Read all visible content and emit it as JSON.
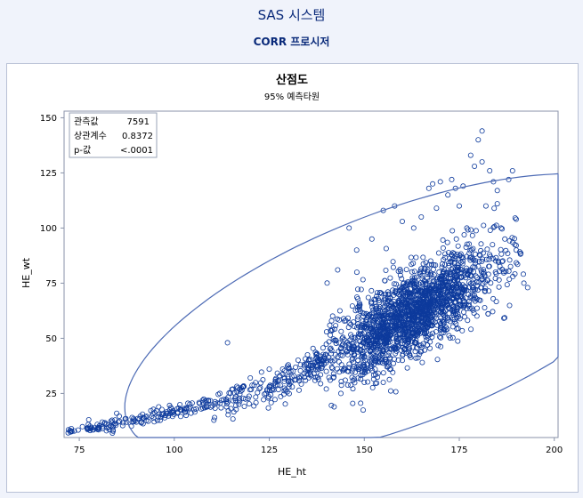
{
  "header": {
    "system_title": "SAS 시스템",
    "procedure_title": "CORR 프로시저"
  },
  "chart_data": {
    "type": "scatter",
    "title": "산점도",
    "subtitle": "95% 예측타원",
    "xlabel": "HE_ht",
    "ylabel": "HE_wt",
    "xlim": [
      71,
      201
    ],
    "ylim": [
      5,
      153
    ],
    "x_ticks": [
      75,
      100,
      125,
      150,
      175,
      200
    ],
    "y_ticks": [
      25,
      50,
      75,
      100,
      125,
      150
    ],
    "inset_stats": [
      {
        "label": "관측값",
        "value": "7591"
      },
      {
        "label": "상관계수",
        "value": "0.8372"
      },
      {
        "label": "p-값",
        "value": "<.0001"
      }
    ],
    "marker_color": "#0d3a9c",
    "ellipse_color": "#4d6bb5",
    "ellipse": {
      "center": [
        159.3,
        59.2
      ],
      "semi_axis_major": 49.5,
      "semi_axis_minor": 7.6,
      "angle_deg": 21.0
    },
    "outliers": [
      [
        114,
        48
      ],
      [
        143,
        81
      ],
      [
        146,
        100
      ],
      [
        148,
        90
      ],
      [
        152,
        95
      ],
      [
        155,
        108
      ],
      [
        158,
        110
      ],
      [
        160,
        103
      ],
      [
        163,
        100
      ],
      [
        165,
        105
      ],
      [
        167,
        118
      ],
      [
        168,
        120
      ],
      [
        170,
        121
      ],
      [
        172,
        115
      ],
      [
        173,
        122
      ],
      [
        174,
        118
      ],
      [
        175,
        110
      ],
      [
        176,
        119
      ],
      [
        177,
        100
      ],
      [
        178,
        133
      ],
      [
        179,
        128
      ],
      [
        180,
        140
      ],
      [
        181,
        144
      ],
      [
        181,
        130
      ],
      [
        182,
        110
      ],
      [
        183,
        126
      ],
      [
        184,
        121
      ],
      [
        185,
        117
      ],
      [
        186,
        100
      ],
      [
        187,
        95
      ],
      [
        188,
        122
      ],
      [
        189,
        126
      ],
      [
        190,
        90
      ],
      [
        192,
        75
      ],
      [
        193,
        73
      ],
      [
        190,
        104
      ],
      [
        185,
        111
      ],
      [
        169,
        109
      ],
      [
        165,
        44
      ],
      [
        160,
        40
      ],
      [
        155,
        30
      ],
      [
        150,
        30
      ],
      [
        145,
        31
      ],
      [
        140,
        35
      ],
      [
        136,
        33
      ],
      [
        130,
        38
      ],
      [
        125,
        36
      ],
      [
        120,
        32
      ],
      [
        118,
        28
      ],
      [
        112,
        25
      ]
    ],
    "density_trend": [
      [
        72,
        8
      ],
      [
        80,
        10
      ],
      [
        90,
        13
      ],
      [
        100,
        17
      ],
      [
        110,
        20
      ],
      [
        120,
        24
      ],
      [
        130,
        31
      ],
      [
        140,
        41
      ],
      [
        150,
        50
      ],
      [
        155,
        54
      ],
      [
        160,
        59
      ],
      [
        165,
        63
      ],
      [
        170,
        68
      ],
      [
        175,
        73
      ],
      [
        180,
        78
      ],
      [
        185,
        82
      ],
      [
        190,
        86
      ]
    ],
    "observations": 7591
  }
}
